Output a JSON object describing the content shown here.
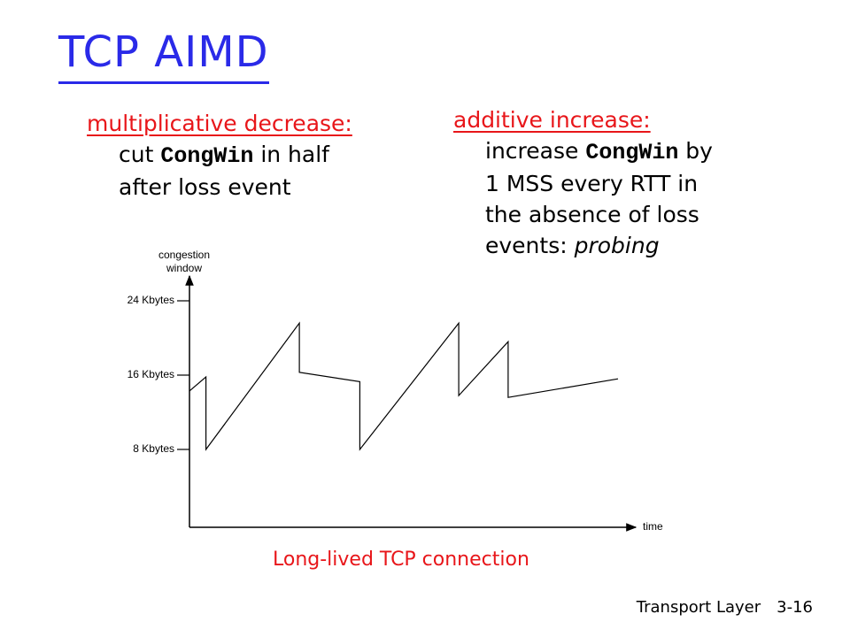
{
  "title": "TCP AIMD",
  "multiplicative": {
    "heading": "multiplicative decrease:",
    "line1_a": "cut ",
    "line1_mono": "CongWin",
    "line1_b": " in half",
    "line2": "after loss event"
  },
  "additive": {
    "heading": "additive increase:",
    "line1_a": "increase ",
    "line1_mono": "CongWin",
    "line1_b": " by",
    "line2": "1 MSS every RTT in",
    "line3": "the absence of loss",
    "line4_a": "events: ",
    "line4_em": "probing"
  },
  "chart_data": {
    "type": "line",
    "ylabel_line1": "congestion",
    "ylabel_line2": "window",
    "xlabel": "time",
    "yticks": [
      {
        "value": 24,
        "label": "24 Kbytes"
      },
      {
        "value": 16,
        "label": "16 Kbytes"
      },
      {
        "value": 8,
        "label": "8 Kbytes"
      }
    ],
    "ylim": [
      0,
      30
    ],
    "grid": false,
    "series": [
      {
        "color": "#000000",
        "points": [
          [
            0,
            14.3
          ],
          [
            3,
            15.8
          ],
          [
            3,
            8.0
          ],
          [
            20,
            21.6
          ],
          [
            20,
            16.3
          ],
          [
            31,
            15.3
          ],
          [
            31,
            8.0
          ],
          [
            49,
            21.6
          ],
          [
            49,
            13.8
          ],
          [
            58,
            19.6
          ],
          [
            58,
            13.6
          ],
          [
            78,
            15.6
          ]
        ]
      }
    ],
    "xlim": [
      0,
      78
    ]
  },
  "caption": "Long-lived TCP connection",
  "footer": {
    "chapter": "Transport Layer",
    "page": "3-16"
  }
}
